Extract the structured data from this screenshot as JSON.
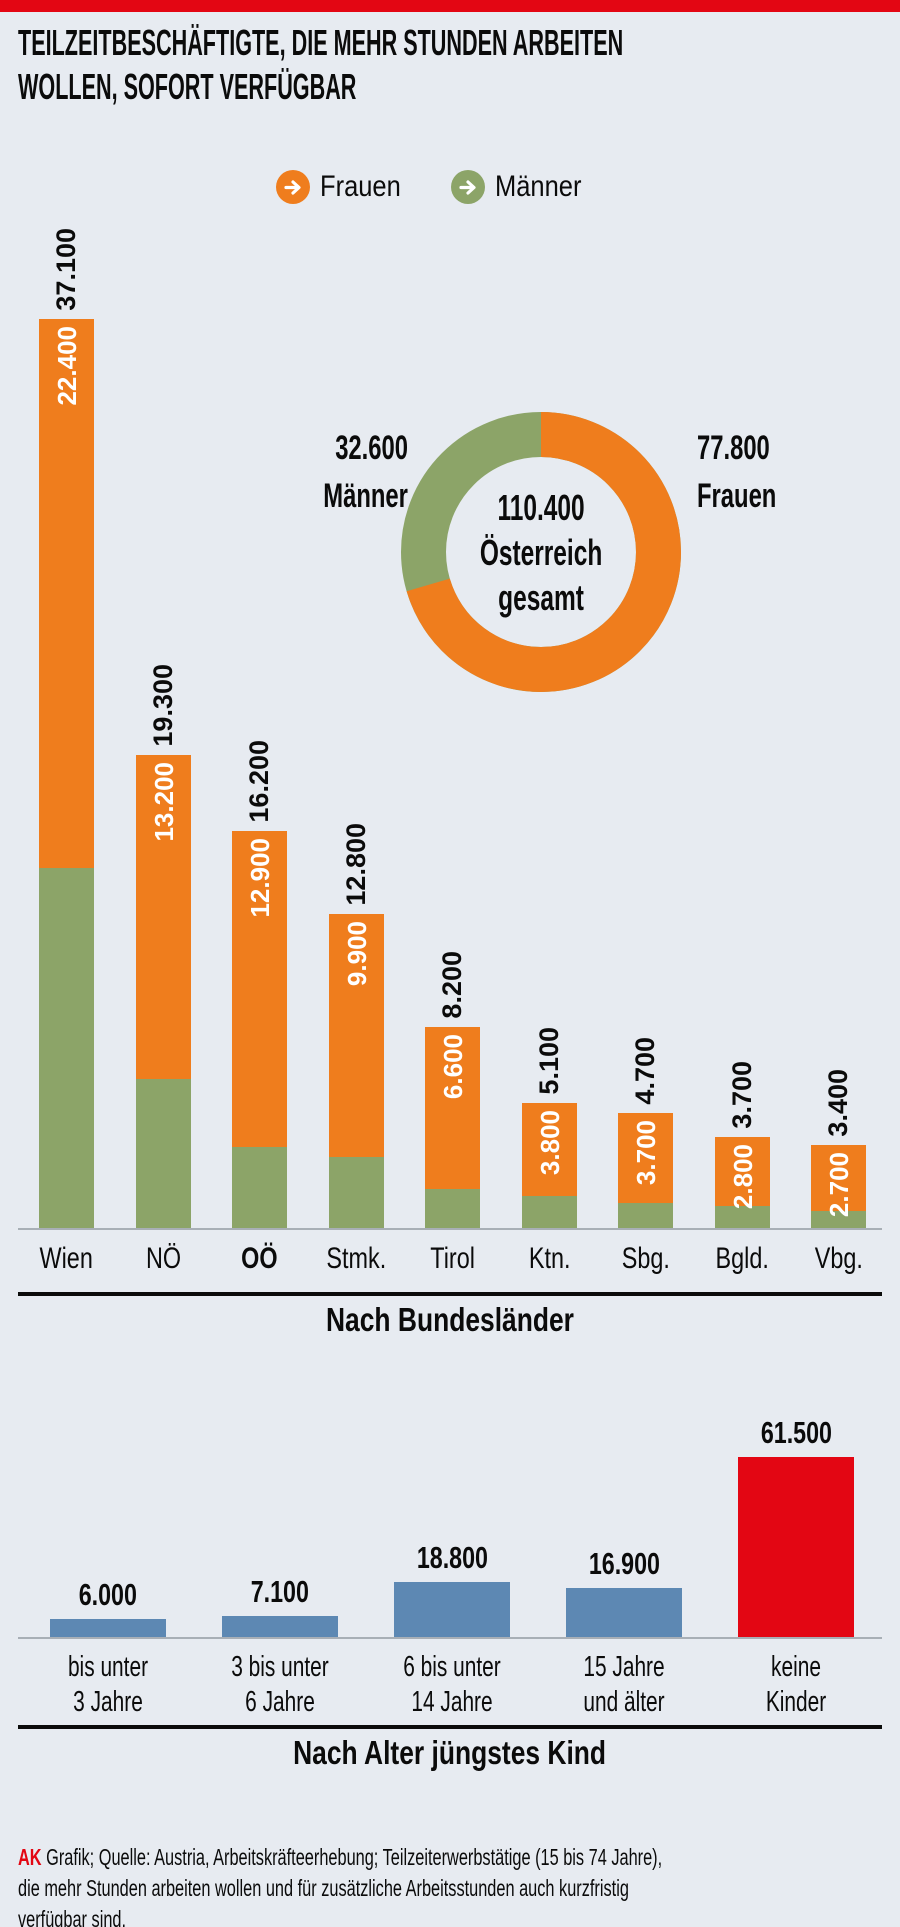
{
  "page": {
    "title_lines": [
      "TEILZEITBESCHÄFTIGTE, DIE MEHR STUNDEN ARBEITEN",
      "WOLLEN, SOFORT VERFÜGBAR"
    ],
    "colors": {
      "background": "#e7ebf1",
      "top_bar_red": "#e30613",
      "orange": "#ef7d1d",
      "green": "#8ca468",
      "blue": "#5d88b3",
      "red": "#e30613",
      "axis_line": "#a8afb6",
      "text": "#0b0b0b",
      "bar_value_text": "#ffffff"
    }
  },
  "legend": {
    "items": [
      {
        "label": "Frauen",
        "color": "#ef7d1d",
        "icon": "arrow-right-circle"
      },
      {
        "label": "Männer",
        "color": "#8ca468",
        "icon": "arrow-right-circle"
      }
    ]
  },
  "chart_data": [
    {
      "id": "bundeslaender",
      "type": "stacked-bar",
      "title": "Nach Bundesländer",
      "categories": [
        "Wien",
        "NÖ",
        "OÖ",
        "Stmk.",
        "Tirol",
        "Ktn.",
        "Sbg.",
        "Bgld.",
        "Vbg."
      ],
      "highlight_category": "OÖ",
      "totals": [
        37100,
        19300,
        16200,
        12800,
        8200,
        5100,
        4700,
        3700,
        3400
      ],
      "series": [
        {
          "name": "Frauen",
          "color": "#ef7d1d",
          "values": [
            22400,
            13200,
            12900,
            9900,
            6600,
            3800,
            3700,
            2800,
            2700
          ]
        },
        {
          "name": "Männer",
          "color": "#8ca468",
          "values": [
            14700,
            6100,
            3300,
            2900,
            1600,
            1300,
            1000,
            900,
            700
          ]
        }
      ],
      "value_label_style": "totals black vertical above bar, Frauen value white vertical inside orange segment",
      "number_format": "de-thousands-dot"
    },
    {
      "id": "oesterreich-gesamt-donut",
      "type": "donut",
      "center_lines": [
        "110.400",
        "Österreich",
        "gesamt"
      ],
      "total": 110400,
      "slices": [
        {
          "label": "Frauen",
          "value": 77800,
          "display": "77.800",
          "color": "#ef7d1d",
          "side": "right"
        },
        {
          "label": "Männer",
          "value": 32600,
          "display": "32.600",
          "color": "#8ca468",
          "side": "left"
        }
      ]
    },
    {
      "id": "alter-juengstes-kind",
      "type": "bar",
      "title": "Nach Alter jüngstes Kind",
      "categories": [
        {
          "line1": "bis unter",
          "line2": "3 Jahre"
        },
        {
          "line1": "3 bis unter",
          "line2": "6 Jahre"
        },
        {
          "line1": "6 bis unter",
          "line2": "14 Jahre"
        },
        {
          "line1": "15 Jahre",
          "line2": "und älter"
        },
        {
          "line1": "keine",
          "line2": "Kinder"
        }
      ],
      "values": [
        6000,
        7100,
        18800,
        16900,
        61500
      ],
      "bar_colors": [
        "#5d88b3",
        "#5d88b3",
        "#5d88b3",
        "#5d88b3",
        "#e30613"
      ],
      "number_format": "de-thousands-dot"
    }
  ],
  "footer": {
    "brand": "AK",
    "text_lines": [
      "Grafik; Quelle: Austria, Arbeitskräfteerhebung; Teilzeiterwerbstätige (15 bis 74 Jahre),",
      "die mehr Stunden arbeiten wollen und für zusätzliche Arbeitsstunden auch kurzfristig",
      "verfügbar sind."
    ]
  }
}
